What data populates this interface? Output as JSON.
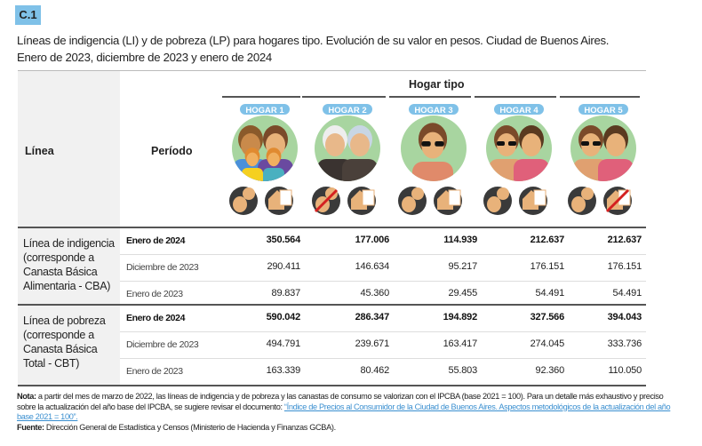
{
  "badge": "C.1",
  "title_line1": "Líneas de indigencia (LI) y de pobreza (LP) para hogares tipo. Evolución de su valor en pesos. Ciudad de Buenos Aires.",
  "title_line2": "Enero de 2023, diciembre de 2023 y enero de 2024",
  "header": {
    "linea": "Línea",
    "periodo": "Período",
    "hogar_tipo": "Hogar tipo",
    "hogares": [
      "HOGAR 1",
      "HOGAR 2",
      "HOGAR 3",
      "HOGAR 4",
      "HOGAR 5"
    ]
  },
  "groups": [
    {
      "label": "Línea de indigencia (corresponde a Canasta Básica Alimentaria - CBA)",
      "rows": [
        {
          "periodo": "Enero de 2024",
          "values": [
            "350.564",
            "177.006",
            "114.939",
            "212.637",
            "212.637"
          ]
        },
        {
          "periodo": "Diciembre de 2023",
          "values": [
            "290.411",
            "146.634",
            "95.217",
            "176.151",
            "176.151"
          ]
        },
        {
          "periodo": "Enero de 2023",
          "values": [
            "89.837",
            "45.360",
            "29.455",
            "54.491",
            "54.491"
          ]
        }
      ]
    },
    {
      "label": "Línea de pobreza (corresponde a Canasta Básica Total - CBT)",
      "rows": [
        {
          "periodo": "Enero de 2024",
          "values": [
            "590.042",
            "286.347",
            "194.892",
            "327.566",
            "394.043"
          ]
        },
        {
          "periodo": "Diciembre de 2023",
          "values": [
            "494.791",
            "239.671",
            "163.417",
            "274.045",
            "333.736"
          ]
        },
        {
          "periodo": "Enero de 2023",
          "values": [
            "163.339",
            "80.462",
            "55.803",
            "92.360",
            "110.050"
          ]
        }
      ]
    }
  ],
  "note": {
    "label": "Nota:",
    "text": " a partir del mes de marzo de 2022, las líneas de indigencia y de pobreza y las canastas de consumo se valorizan con el IPCBA (base 2021 = 100). Para un detalle más exhaustivo y preciso sobre la actualización del año base del IPCBA, se sugiere revisar el documento: ",
    "link": "“Índice de Precios al Consumidor de la Ciudad de Buenos Aires. Aspectos metodológicos de la actualización del año base 2021 = 100”.",
    "source_label": "Fuente:",
    "source": " Dirección General de Estadística y Censos (Ministerio de Hacienda y Finanzas GCBA)."
  },
  "colors": {
    "accent": "#7fc1e8",
    "link": "#3a8fd0"
  }
}
